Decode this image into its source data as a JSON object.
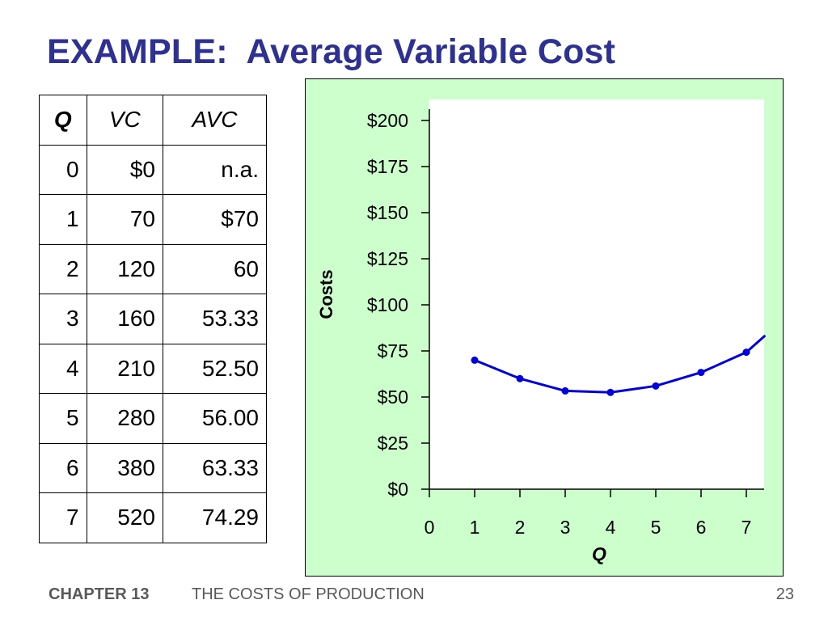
{
  "title": "EXAMPLE:  Average Variable Cost",
  "table": {
    "headers": [
      "Q",
      "VC",
      "AVC"
    ],
    "rows": [
      [
        "0",
        "$0",
        "n.a."
      ],
      [
        "1",
        "70",
        "$70"
      ],
      [
        "2",
        "120",
        "60"
      ],
      [
        "3",
        "160",
        "53.33"
      ],
      [
        "4",
        "210",
        "52.50"
      ],
      [
        "5",
        "280",
        "56.00"
      ],
      [
        "6",
        "380",
        "63.33"
      ],
      [
        "7",
        "520",
        "74.29"
      ]
    ]
  },
  "chart_data": {
    "type": "line",
    "title": "",
    "xlabel": "Q",
    "ylabel": "Costs",
    "xlim": [
      0,
      7.35
    ],
    "ylim": [
      0,
      210
    ],
    "x_ticks": [
      "0",
      "1",
      "2",
      "3",
      "4",
      "5",
      "6",
      "7"
    ],
    "y_ticks": [
      "$0",
      "$25",
      "$50",
      "$75",
      "$100",
      "$125",
      "$150",
      "$175",
      "$200"
    ],
    "y_tick_values": [
      0,
      25,
      50,
      75,
      100,
      125,
      150,
      175,
      200
    ],
    "x": [
      1,
      2,
      3,
      4,
      5,
      6,
      7
    ],
    "y": [
      70,
      60,
      53.33,
      52.5,
      56,
      63.33,
      74.29
    ],
    "curve_extends_to": {
      "x": 7.4,
      "y": 83
    },
    "series_color": "#0000DD",
    "plot_background": "#ffffff",
    "panel_background": "#ccffcc",
    "grid": false,
    "legend": "none"
  },
  "footer": {
    "chapter": "CHAPTER 13",
    "topic": "THE COSTS OF PRODUCTION",
    "page": "23"
  },
  "colors": {
    "title": "#2E3192",
    "footer": "#595959"
  }
}
